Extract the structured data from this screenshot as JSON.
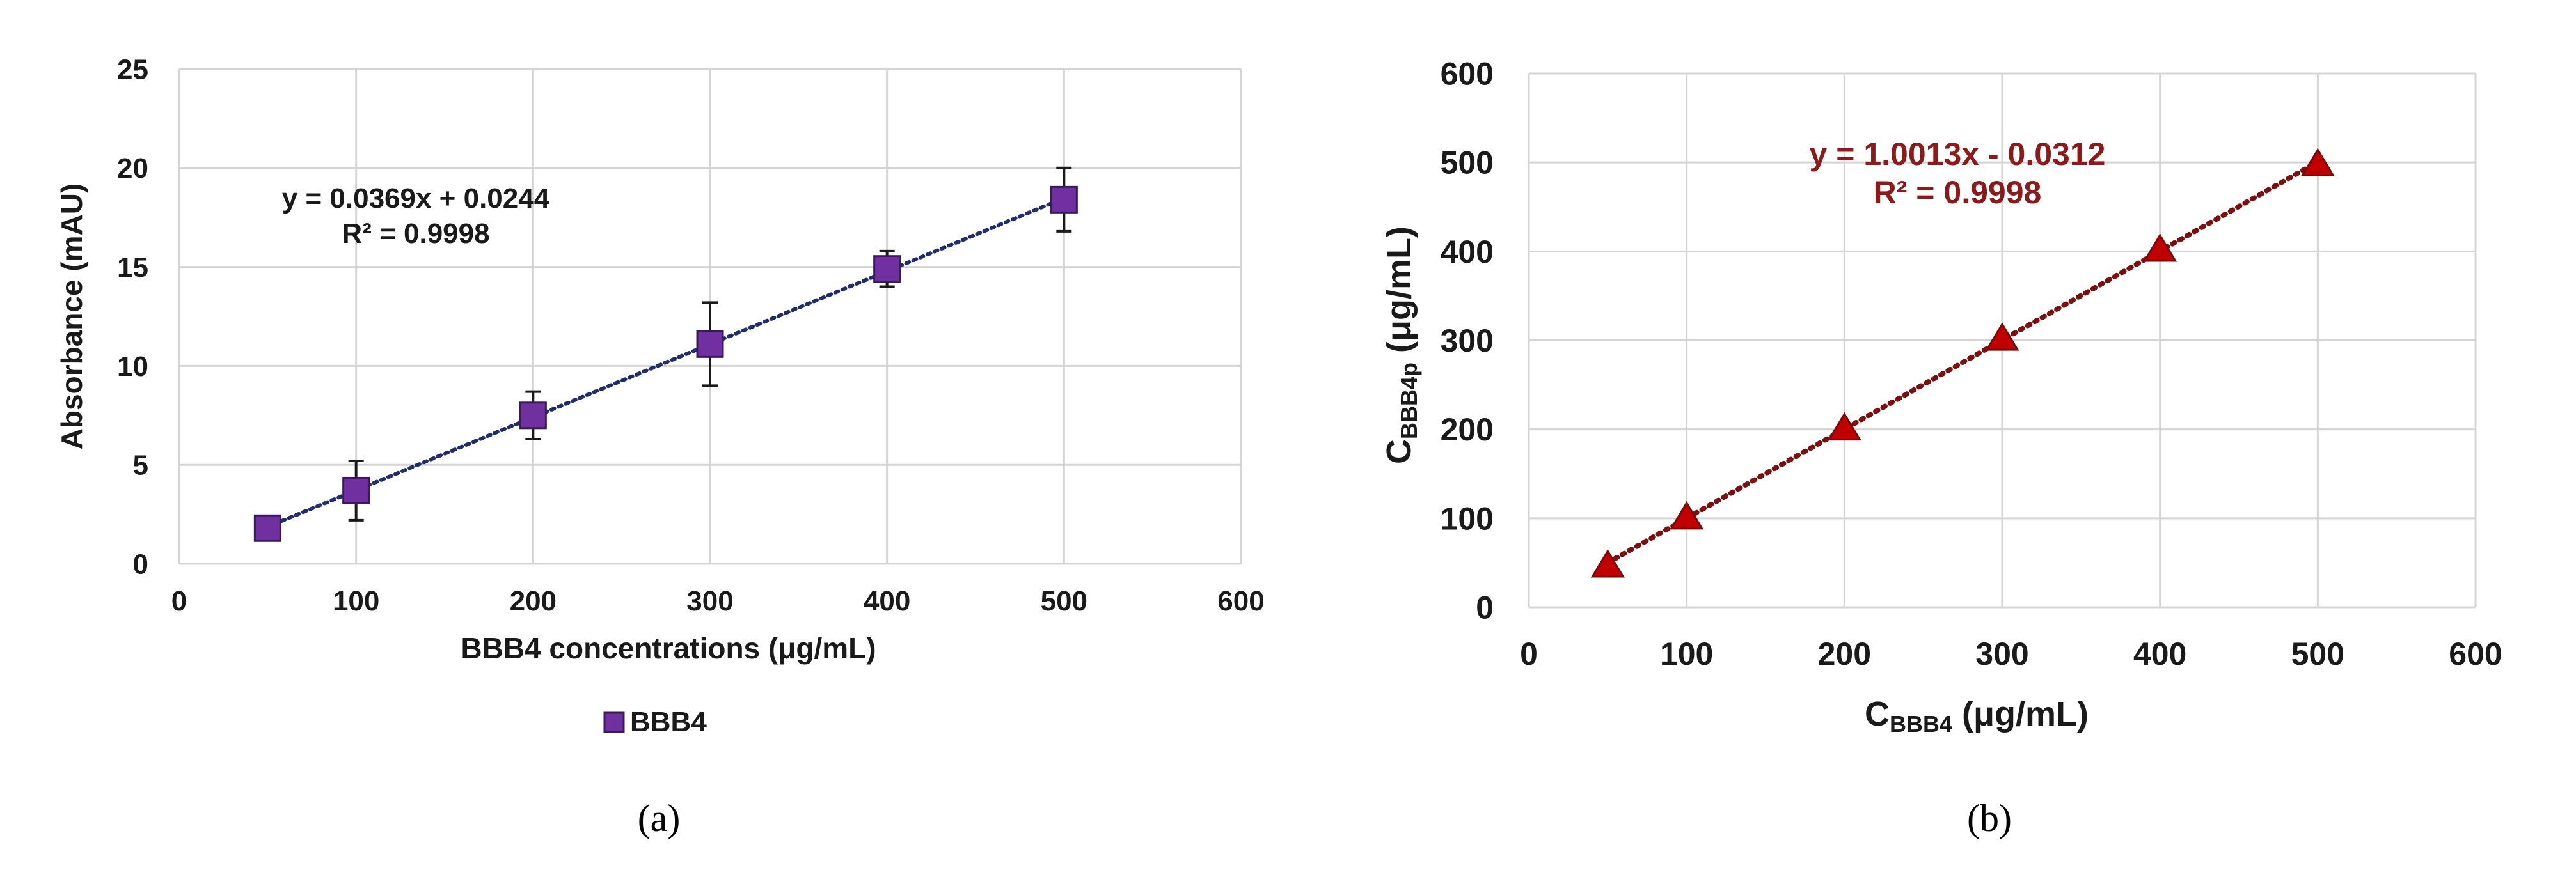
{
  "chart_data": [
    {
      "panel": "(a)",
      "type": "scatter",
      "series": [
        {
          "name": "BBB4",
          "marker": "square",
          "color": "#7030a0",
          "x": [
            50,
            100,
            200,
            300,
            400,
            500
          ],
          "y": [
            1.8,
            3.7,
            7.5,
            11.1,
            14.9,
            18.4
          ],
          "error": [
            0.5,
            1.5,
            1.2,
            2.1,
            0.9,
            1.6
          ]
        }
      ],
      "trendline": {
        "slope": 0.0369,
        "intercept": 0.0244,
        "x_range": [
          50,
          500
        ],
        "color": "#1f2d6b"
      },
      "equation": "y = 0.0369x + 0.0244",
      "r_squared": "R² = 0.9998",
      "xlabel": "BBB4 concentrations (μg/mL)",
      "ylabel": "Absorbance (mAU)",
      "xlim": [
        0,
        600
      ],
      "ylim": [
        0,
        25
      ],
      "xticks": [
        "0",
        "100",
        "200",
        "300",
        "400",
        "500",
        "600"
      ],
      "yticks": [
        "0",
        "5",
        "10",
        "15",
        "20",
        "25"
      ],
      "grid": true,
      "legend": "bottom-left",
      "legend_label": "BBB4"
    },
    {
      "panel": "(b)",
      "type": "scatter",
      "series": [
        {
          "name": "CBBB4p",
          "marker": "triangle",
          "color": "#c00000",
          "x": [
            50,
            100,
            200,
            300,
            400,
            500
          ],
          "y": [
            46,
            100,
            200,
            301,
            401,
            497
          ]
        }
      ],
      "trendline": {
        "slope": 1.0013,
        "intercept": -0.0312,
        "x_range": [
          50,
          500
        ],
        "color": "#7b1010"
      },
      "equation": "y = 1.0013x - 0.0312",
      "r_squared": "R² = 0.9998",
      "xlabel_main": "C",
      "xlabel_sub": "BBB4",
      "xlabel_unit": " (μg/mL)",
      "ylabel_main": "C",
      "ylabel_sub": "BBB4p",
      "ylabel_unit": " (μg/mL)",
      "xlim": [
        0,
        600
      ],
      "ylim": [
        0,
        600
      ],
      "xticks": [
        "0",
        "100",
        "200",
        "300",
        "400",
        "500",
        "600"
      ],
      "yticks": [
        "0",
        "100",
        "200",
        "300",
        "400",
        "500",
        "600"
      ],
      "grid": true
    }
  ],
  "labels": {
    "a": "(a)",
    "b": "(b)"
  }
}
